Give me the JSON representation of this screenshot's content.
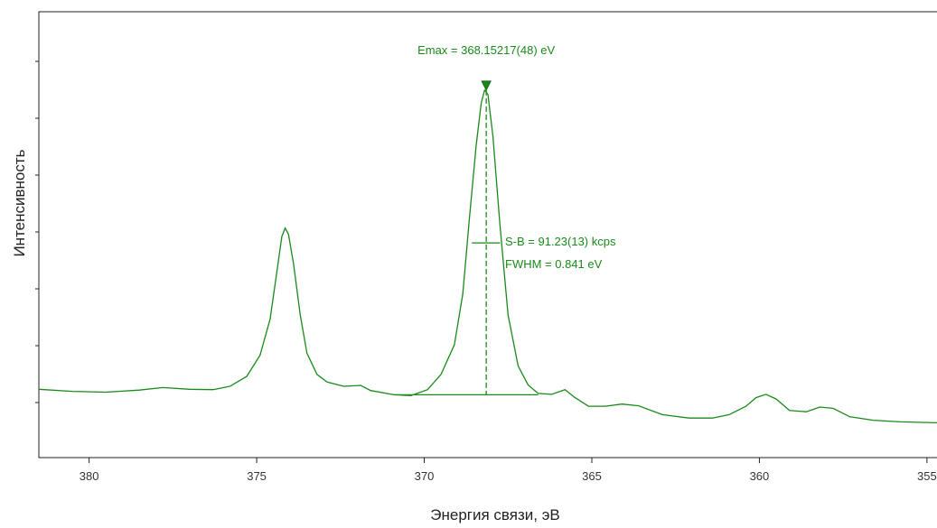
{
  "chart_data": {
    "type": "line",
    "title": "",
    "xlabel": "Энергия связи, эВ",
    "ylabel": "Интенсивность",
    "x_reversed": true,
    "xlim": [
      381.5,
      354.7
    ],
    "ylim": [
      0,
      100
    ],
    "x_ticks": [
      380,
      375,
      370,
      365,
      360,
      355
    ],
    "x_tick_labels": [
      "380",
      "375",
      "370",
      "365",
      "360",
      "355"
    ],
    "y_tick_labels_shown": false,
    "grid": false,
    "series_color": "#1a8a1a",
    "series": [
      {
        "values": [
          [
            381.5,
            12.5
          ],
          [
            380.5,
            12.0
          ],
          [
            379.5,
            11.8
          ],
          [
            378.5,
            12.3
          ],
          [
            377.8,
            12.9
          ],
          [
            377.0,
            12.5
          ],
          [
            376.3,
            12.4
          ],
          [
            375.8,
            13.2
          ],
          [
            375.3,
            15.5
          ],
          [
            374.9,
            20.5
          ],
          [
            374.6,
            29.0
          ],
          [
            374.4,
            40.0
          ],
          [
            374.25,
            48.5
          ],
          [
            374.15,
            50.5
          ],
          [
            374.05,
            49.0
          ],
          [
            373.9,
            42.0
          ],
          [
            373.7,
            30.0
          ],
          [
            373.5,
            21.0
          ],
          [
            373.2,
            16.0
          ],
          [
            372.9,
            14.2
          ],
          [
            372.4,
            13.2
          ],
          [
            371.9,
            13.4
          ],
          [
            371.6,
            12.2
          ],
          [
            370.9,
            11.2
          ],
          [
            370.4,
            11.0
          ],
          [
            369.9,
            12.4
          ],
          [
            369.5,
            16.0
          ],
          [
            369.1,
            23.0
          ],
          [
            368.85,
            35.0
          ],
          [
            368.65,
            53.0
          ],
          [
            368.45,
            70.0
          ],
          [
            368.3,
            80.0
          ],
          [
            368.2,
            83.0
          ],
          [
            368.1,
            82.0
          ],
          [
            367.95,
            72.0
          ],
          [
            367.75,
            52.0
          ],
          [
            367.5,
            30.0
          ],
          [
            367.2,
            18.0
          ],
          [
            366.9,
            13.5
          ],
          [
            366.6,
            11.5
          ],
          [
            366.2,
            11.3
          ],
          [
            365.8,
            12.4
          ],
          [
            365.5,
            10.5
          ],
          [
            365.1,
            8.5
          ],
          [
            364.6,
            8.5
          ],
          [
            364.1,
            9.0
          ],
          [
            363.6,
            8.6
          ],
          [
            362.9,
            6.5
          ],
          [
            362.1,
            5.7
          ],
          [
            361.4,
            5.7
          ],
          [
            360.9,
            6.5
          ],
          [
            360.4,
            8.5
          ],
          [
            360.1,
            10.5
          ],
          [
            359.8,
            11.3
          ],
          [
            359.5,
            10.2
          ],
          [
            359.1,
            7.5
          ],
          [
            358.6,
            7.2
          ],
          [
            358.2,
            8.3
          ],
          [
            357.8,
            8.0
          ],
          [
            357.3,
            6.0
          ],
          [
            356.6,
            5.2
          ],
          [
            355.8,
            4.8
          ],
          [
            354.7,
            4.6
          ]
        ]
      }
    ],
    "baseline": {
      "x_start": 370.9,
      "x_end": 366.6,
      "y_start": 11.2,
      "y_end": 11.2
    },
    "peak_marker": {
      "x": 368.15,
      "y": 83.0
    },
    "fwhm_line": {
      "x_start": 368.58,
      "x_end": 367.74,
      "y": 47.0
    },
    "annotations": {
      "emax": "Emax = 368.15217(48) eV",
      "sb": "S-B = 91.23(13) kcps",
      "fwhm": "FWHM = 0.841 eV"
    }
  }
}
